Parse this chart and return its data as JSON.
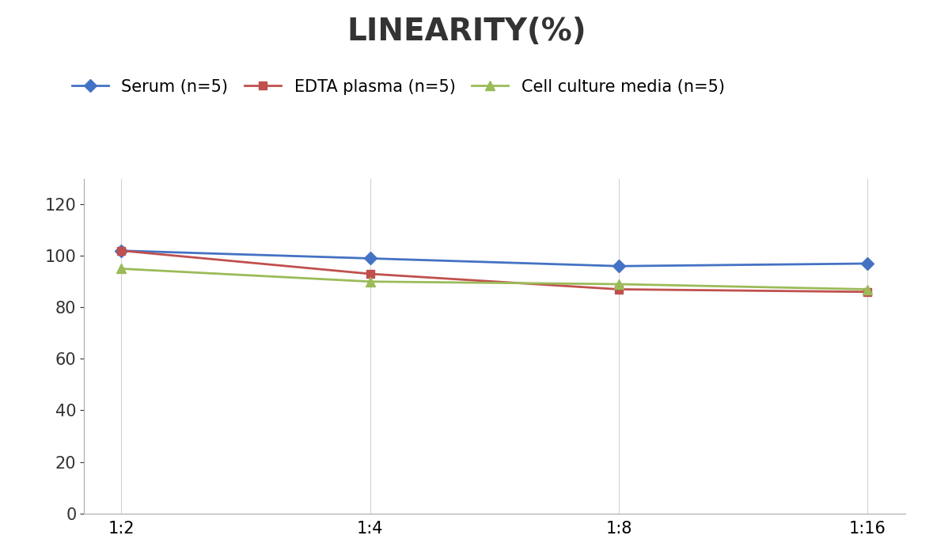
{
  "title": "LINEARITY(%)",
  "x_labels": [
    "1:2",
    "1:4",
    "1:8",
    "1:16"
  ],
  "series": [
    {
      "name": "Serum (n=5)",
      "values": [
        102,
        99,
        96,
        97
      ],
      "color": "#4472C4",
      "marker": "D",
      "marker_size": 8,
      "linewidth": 2.0
    },
    {
      "name": "EDTA plasma (n=5)",
      "values": [
        102,
        93,
        87,
        86
      ],
      "color": "#C0504D",
      "marker": "s",
      "marker_size": 7,
      "linewidth": 2.0
    },
    {
      "name": "Cell culture media (n=5)",
      "values": [
        95,
        90,
        89,
        87
      ],
      "color": "#9BBB59",
      "marker": "^",
      "marker_size": 8,
      "linewidth": 2.0
    }
  ],
  "ylim": [
    0,
    130
  ],
  "yticks": [
    0,
    20,
    40,
    60,
    80,
    100,
    120
  ],
  "background_color": "#ffffff",
  "grid_color": "#d3d3d3",
  "title_fontsize": 28,
  "tick_fontsize": 15,
  "legend_fontsize": 15
}
